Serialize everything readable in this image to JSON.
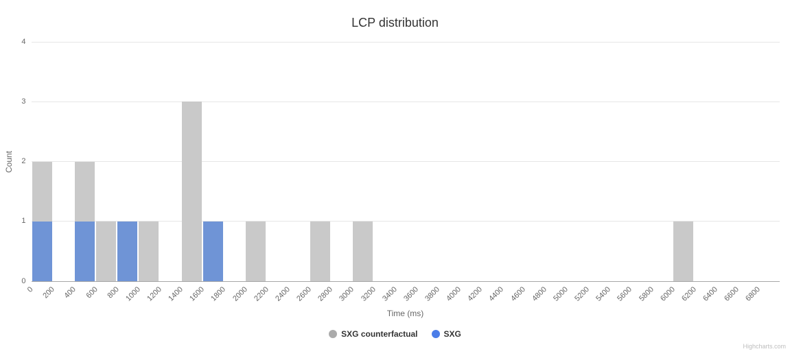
{
  "chart": {
    "title": "LCP distribution",
    "y_axis_title": "Count",
    "x_axis_title": "Time (ms)",
    "credit": "Highcharts.com"
  },
  "colors": {
    "bar_counterfactual": "#c9c9c9",
    "bar_sxg": "#6f94d6",
    "legend_counterfactual": "#ababab",
    "legend_sxg": "#4b7de8",
    "gridline": "#e6e6e6",
    "axis_line": "#a6a6a6",
    "title_text": "#333333",
    "axis_text": "#666666",
    "credit_text": "#bdbdbd"
  },
  "chart_data": {
    "type": "bar",
    "subtype": "histogram-overlapping-columns",
    "title": "LCP distribution",
    "xlabel": "Time (ms)",
    "ylabel": "Count",
    "bin_width_ms": 200,
    "xlim": [
      0,
      7000
    ],
    "ylim": [
      0,
      4
    ],
    "y_tick_labels": [
      "0",
      "1",
      "2",
      "3",
      "4"
    ],
    "x_tick_labels": [
      "0",
      "200",
      "400",
      "600",
      "800",
      "1000",
      "1200",
      "1400",
      "1600",
      "1800",
      "2000",
      "2200",
      "2400",
      "2600",
      "2800",
      "3000",
      "3200",
      "3400",
      "3600",
      "3800",
      "4000",
      "4200",
      "4400",
      "4600",
      "4800",
      "5000",
      "5200",
      "5400",
      "5600",
      "5800",
      "6000",
      "6200",
      "6400",
      "6600",
      "6800"
    ],
    "x_tick_label_rotation_deg": -45,
    "grid": "horizontal",
    "legend_position": "bottom-center",
    "series": [
      {
        "name": "SXG counterfactual",
        "bar_color": "#c9c9c9",
        "legend_color": "#ababab",
        "points": [
          {
            "bin_start": 0,
            "count": 2
          },
          {
            "bin_start": 400,
            "count": 2
          },
          {
            "bin_start": 600,
            "count": 1
          },
          {
            "bin_start": 1000,
            "count": 1
          },
          {
            "bin_start": 1400,
            "count": 3
          },
          {
            "bin_start": 2000,
            "count": 1
          },
          {
            "bin_start": 2600,
            "count": 1
          },
          {
            "bin_start": 3000,
            "count": 1
          },
          {
            "bin_start": 6000,
            "count": 1
          }
        ]
      },
      {
        "name": "SXG",
        "bar_color": "#6f94d6",
        "legend_color": "#4b7de8",
        "points": [
          {
            "bin_start": 0,
            "count": 1
          },
          {
            "bin_start": 400,
            "count": 1
          },
          {
            "bin_start": 800,
            "count": 1
          },
          {
            "bin_start": 1600,
            "count": 1
          }
        ]
      }
    ]
  }
}
